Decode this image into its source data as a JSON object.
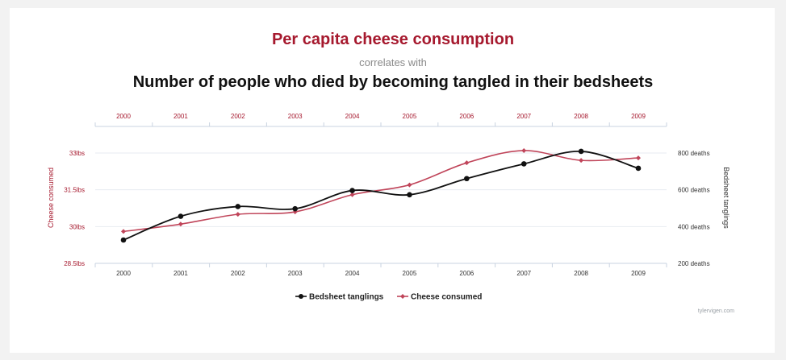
{
  "header": {
    "title": "Per capita cheese consumption",
    "connector": "correlates with",
    "subtitle": "Number of people who died by becoming tangled in their bedsheets"
  },
  "credit": "tylervigen.com",
  "chart_data": {
    "type": "line",
    "x": [
      2000,
      2001,
      2002,
      2003,
      2004,
      2005,
      2006,
      2007,
      2008,
      2009
    ],
    "series": [
      {
        "name": "Bedsheet tanglings",
        "axis": "right",
        "color": "#111111",
        "values": [
          327,
          456,
          509,
          497,
          596,
          573,
          661,
          741,
          809,
          717
        ]
      },
      {
        "name": "Cheese consumed",
        "axis": "left",
        "color": "#c0455a",
        "values": [
          29.8,
          30.1,
          30.5,
          30.6,
          31.3,
          31.7,
          32.6,
          33.1,
          32.7,
          32.8
        ]
      }
    ],
    "left_axis": {
      "label": "Cheese consumed",
      "ticks": [
        28.5,
        30,
        31.5,
        33
      ],
      "tick_labels": [
        "28.5lbs",
        "30lbs",
        "31.5lbs",
        "33lbs"
      ],
      "range": [
        28.5,
        33
      ]
    },
    "right_axis": {
      "label": "Bedsheet tanglings",
      "ticks": [
        200,
        400,
        600,
        800
      ],
      "tick_labels": [
        "200 deaths",
        "400 deaths",
        "600 deaths",
        "800 deaths"
      ],
      "range": [
        200,
        800
      ]
    },
    "top_axis_labels": [
      "2000",
      "2001",
      "2002",
      "2003",
      "2004",
      "2005",
      "2006",
      "2007",
      "2008",
      "2009"
    ],
    "bottom_axis_labels": [
      "2000",
      "2001",
      "2002",
      "2003",
      "2004",
      "2005",
      "2006",
      "2007",
      "2008",
      "2009"
    ],
    "grid": true,
    "legend": {
      "placement": "bottom-center",
      "items": [
        "Bedsheet tanglings",
        "Cheese consumed"
      ]
    }
  }
}
